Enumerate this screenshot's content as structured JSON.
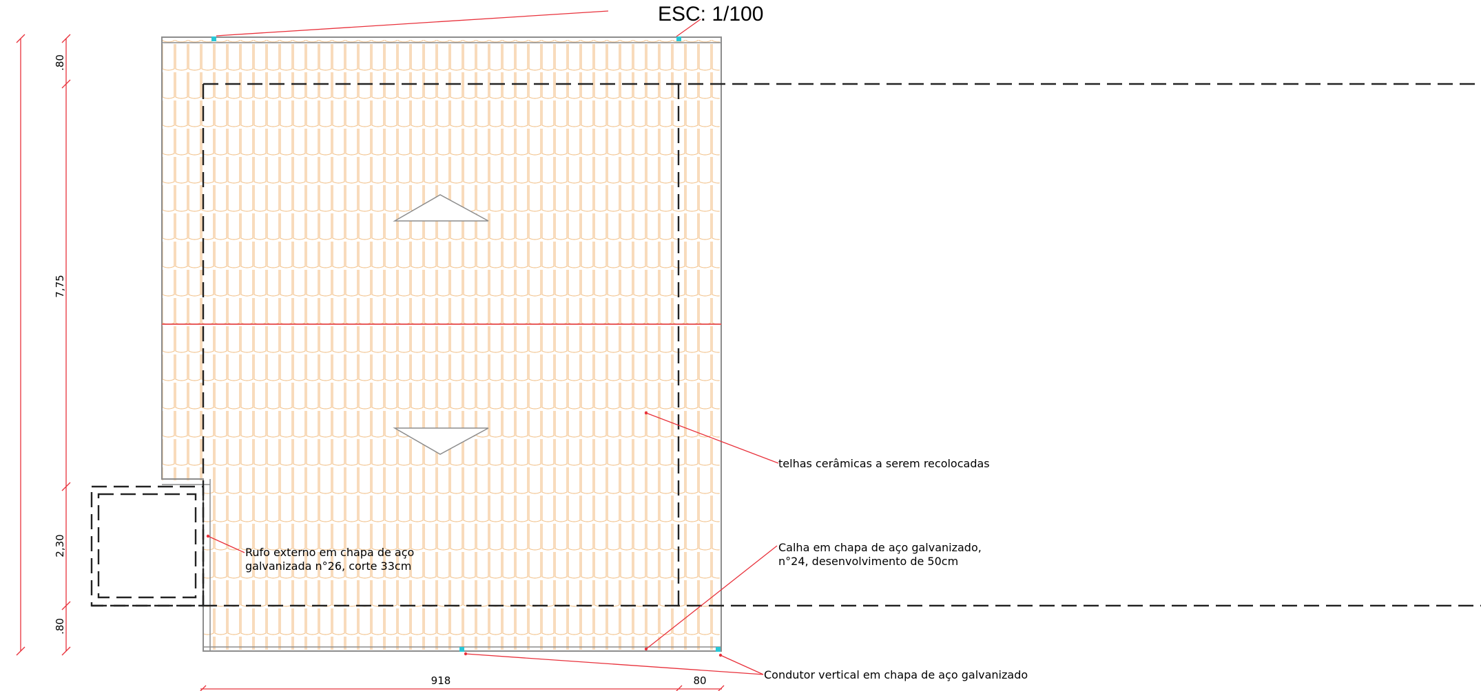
{
  "drawing": {
    "scale_label": "ESC: 1/100",
    "colors": {
      "tile": "#f2c38e",
      "outline": "#8c8c8c",
      "dashed": "#222222",
      "dimension": "#e8303a",
      "ridge": "#e85a5a",
      "drain": "#29c7d6"
    },
    "vertical_dimensions": [
      ".80",
      "7,75",
      "2,30",
      ".80"
    ],
    "horizontal_dimensions": [
      "918",
      "80"
    ],
    "annotations": {
      "tiles": "telhas cerâmicas a serem recolocadas",
      "flashing_line1": "Rufo externo em chapa de aço",
      "flashing_line2": "galvanizada n°26, corte 33cm",
      "gutter_line1": "Calha em chapa de aço galvanizado,",
      "gutter_line2": "n°24, desenvolvimento de 50cm",
      "downpipe": "Condutor vertical em chapa de aço galvanizado"
    },
    "slope_arrows": [
      "up-arrow-icon",
      "down-arrow-icon"
    ]
  }
}
